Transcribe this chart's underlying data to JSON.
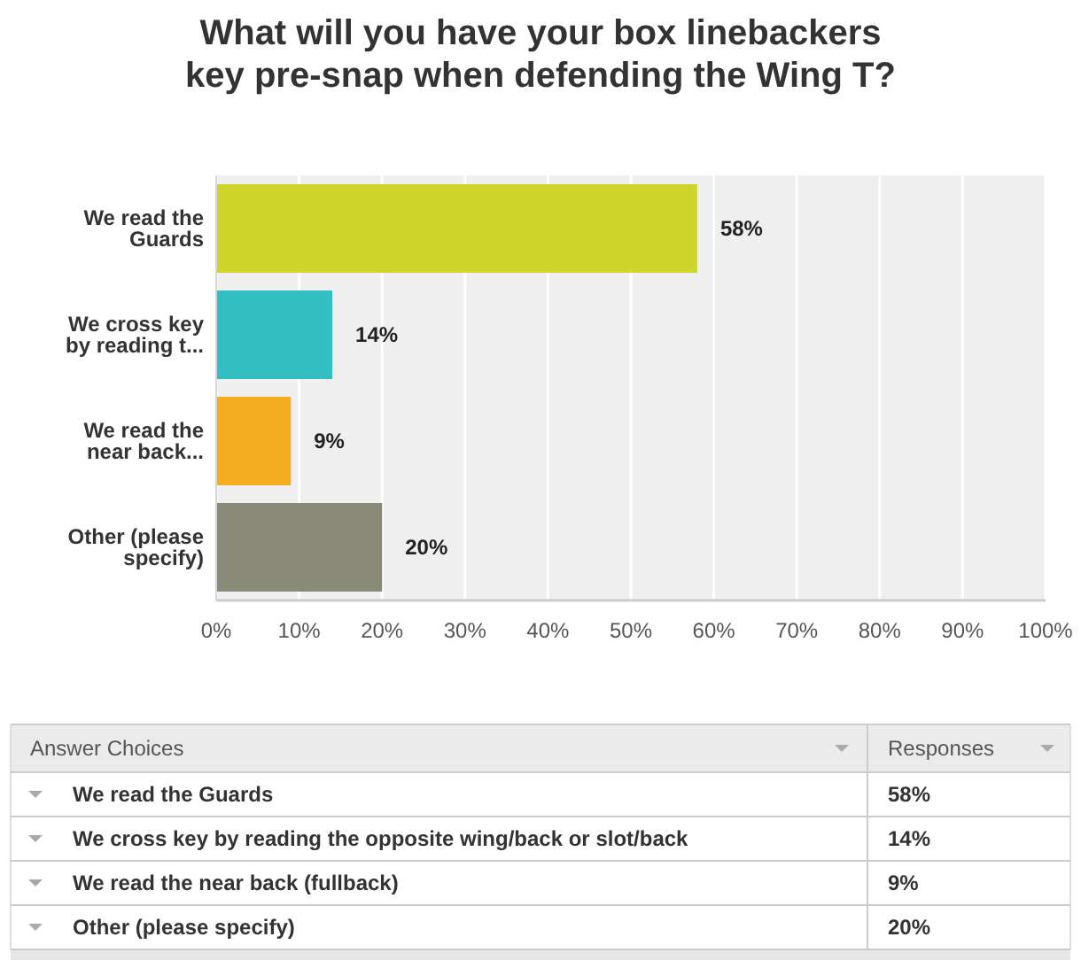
{
  "chart_data": {
    "type": "bar",
    "orientation": "horizontal",
    "title": "What will you have your box linebackers key pre-snap when defending the Wing T?",
    "categories": [
      "We read the Guards",
      "We cross key by reading t...",
      "We read the near back...",
      "Other (please specify)"
    ],
    "values": [
      58,
      14,
      9,
      20
    ],
    "colors": [
      "#cfd52a",
      "#33bfc2",
      "#f6ae20",
      "#898a78"
    ],
    "value_labels": [
      "58%",
      "14%",
      "9%",
      "20%"
    ],
    "xlim": [
      0,
      100
    ],
    "xticks": [
      {
        "value": 0,
        "label": "0%"
      },
      {
        "value": 10,
        "label": "10%"
      },
      {
        "value": 20,
        "label": "20%"
      },
      {
        "value": 30,
        "label": "30%"
      },
      {
        "value": 40,
        "label": "40%"
      },
      {
        "value": 50,
        "label": "50%"
      },
      {
        "value": 60,
        "label": "60%"
      },
      {
        "value": 70,
        "label": "70%"
      },
      {
        "value": 80,
        "label": "80%"
      },
      {
        "value": 90,
        "label": "90%"
      },
      {
        "value": 100,
        "label": "100%"
      }
    ],
    "grid": "x",
    "annotations": [
      "Answer Choices",
      "Responses",
      "We read the Guards",
      "We cross key by reading the opposite wing/back or slot/back",
      "We read the near back (fullback)",
      "Other (please specify)"
    ]
  }
}
